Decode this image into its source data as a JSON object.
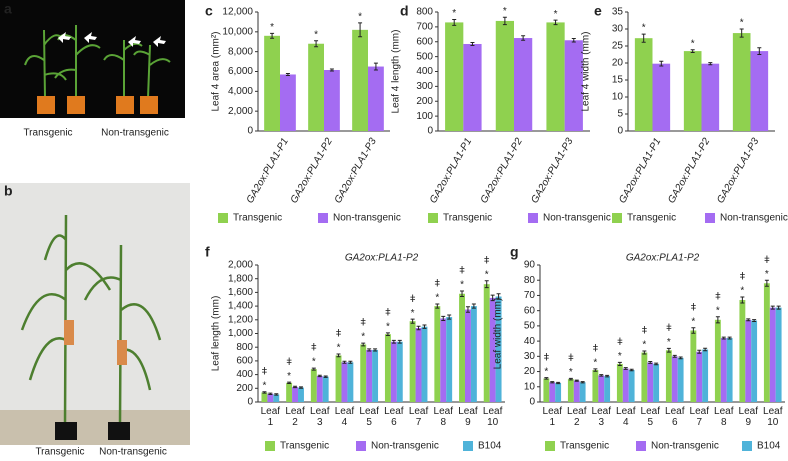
{
  "photos": [
    {
      "panel": "a",
      "captions": [
        "Transgenic",
        "Non-transgenic"
      ]
    },
    {
      "panel": "b",
      "captions": [
        "Transgenic",
        "Non-transgenic"
      ]
    }
  ],
  "chart_data": [
    {
      "type": "bar",
      "panel": "c",
      "y_label": "Leaf 4 area (mm²)",
      "categories": [
        "GA2ox:PLA1-P1",
        "GA2ox:PLA1-P2",
        "GA2ox:PLA1-P3"
      ],
      "series": [
        {
          "name": "Transgenic",
          "color": "#8fd14f",
          "values": [
            9600,
            8800,
            10200
          ],
          "errors": [
            250,
            300,
            700
          ]
        },
        {
          "name": "Non-transgenic",
          "color": "#a46cf2",
          "values": [
            5700,
            6150,
            6500
          ],
          "errors": [
            100,
            100,
            350
          ]
        }
      ],
      "significance": [
        "*",
        "*",
        "*"
      ],
      "ylim": [
        0,
        12000
      ],
      "yticks": [
        0,
        {
          "value": 2000,
          "label": "2,000"
        },
        {
          "value": 4000,
          "label": "4,000"
        },
        {
          "value": 6000,
          "label": "6,000"
        },
        {
          "value": 8000,
          "label": "8,000"
        },
        {
          "value": 10000,
          "label": "10,000"
        },
        {
          "value": 12000,
          "label": "12,000"
        }
      ]
    },
    {
      "type": "bar",
      "panel": "d",
      "y_label": "Leaf 4 length (mm)",
      "categories": [
        "GA2ox:PLA1-P1",
        "GA2ox:PLA1-P2",
        "GA2ox:PLA1-P3"
      ],
      "series": [
        {
          "name": "Transgenic",
          "color": "#8fd14f",
          "values": [
            730,
            740,
            730
          ],
          "errors": [
            20,
            25,
            15
          ]
        },
        {
          "name": "Non-transgenic",
          "color": "#a46cf2",
          "values": [
            585,
            625,
            610
          ],
          "errors": [
            10,
            15,
            12
          ]
        }
      ],
      "significance": [
        "*",
        "*",
        "*"
      ],
      "ylim": [
        0,
        800
      ],
      "yticks": [
        0,
        100,
        200,
        300,
        400,
        500,
        600,
        700,
        800
      ]
    },
    {
      "type": "bar",
      "panel": "e",
      "y_label": "Leaf 4 width (mm)",
      "categories": [
        "GA2ox:PLA1-P1",
        "GA2ox:PLA1-P2",
        "GA2ox:PLA1-P3"
      ],
      "series": [
        {
          "name": "Transgenic",
          "color": "#8fd14f",
          "values": [
            27.3,
            23.5,
            28.8
          ],
          "errors": [
            1.2,
            0.4,
            1.2
          ]
        },
        {
          "name": "Non-transgenic",
          "color": "#a46cf2",
          "values": [
            19.8,
            19.8,
            23.5
          ],
          "errors": [
            0.7,
            0.3,
            1.0
          ]
        }
      ],
      "significance": [
        "*",
        "*",
        "*"
      ],
      "ylim": [
        0,
        35
      ],
      "yticks": [
        0,
        5,
        10,
        15,
        20,
        25,
        30,
        35
      ]
    },
    {
      "type": "bar",
      "panel": "f",
      "title": "GA2ox:PLA1-P2",
      "y_label": "Leaf length (mm)",
      "categories": [
        "Leaf 1",
        "Leaf 2",
        "Leaf 3",
        "Leaf 4",
        "Leaf 5",
        "Leaf 6",
        "Leaf 7",
        "Leaf 8",
        "Leaf 9",
        "Leaf 10"
      ],
      "series": [
        {
          "name": "Transgenic",
          "color": "#8fd14f",
          "values": [
            140,
            280,
            480,
            680,
            840,
            990,
            1180,
            1400,
            1580,
            1720
          ],
          "errors": [
            10,
            10,
            15,
            20,
            20,
            20,
            30,
            30,
            40,
            50
          ]
        },
        {
          "name": "Non-transgenic",
          "color": "#a46cf2",
          "values": [
            120,
            220,
            380,
            580,
            760,
            880,
            1080,
            1220,
            1350,
            1520
          ],
          "errors": [
            10,
            10,
            10,
            15,
            15,
            20,
            25,
            30,
            40,
            40
          ]
        },
        {
          "name": "B104",
          "color": "#4fb3d9",
          "values": [
            110,
            210,
            370,
            580,
            760,
            880,
            1100,
            1240,
            1400,
            1540
          ],
          "errors": [
            10,
            10,
            10,
            15,
            15,
            20,
            25,
            30,
            30,
            40
          ]
        }
      ],
      "significance": [
        "*",
        "*",
        "*",
        "*",
        "*",
        "*",
        "*",
        "*",
        "*",
        "*"
      ],
      "significance2": [
        "ǂ",
        "ǂ",
        "ǂ",
        "ǂ",
        "ǂ",
        "ǂ",
        "ǂ",
        "ǂ",
        "ǂ",
        "ǂ"
      ],
      "ylim": [
        0,
        2000
      ],
      "yticks": [
        0,
        200,
        400,
        600,
        800,
        {
          "value": 1000,
          "label": "1,000"
        },
        {
          "value": 1200,
          "label": "1,200"
        },
        {
          "value": 1400,
          "label": "1,400"
        },
        {
          "value": 1600,
          "label": "1,600"
        },
        {
          "value": 1800,
          "label": "1,800"
        },
        {
          "value": 2000,
          "label": "2,000"
        }
      ]
    },
    {
      "type": "bar",
      "panel": "g",
      "title": "GA2ox:PLA1-P2",
      "y_label": "Leaf width (mm)",
      "categories": [
        "Leaf 1",
        "Leaf 2",
        "Leaf 3",
        "Leaf 4",
        "Leaf 5",
        "Leaf 6",
        "Leaf 7",
        "Leaf 8",
        "Leaf 9",
        "Leaf 10"
      ],
      "series": [
        {
          "name": "Transgenic",
          "color": "#8fd14f",
          "values": [
            15.5,
            15,
            21,
            25,
            32.5,
            34,
            47,
            54,
            67,
            78
          ],
          "errors": [
            0.5,
            0.5,
            0.8,
            1,
            1,
            1.2,
            1.8,
            2,
            2,
            2
          ]
        },
        {
          "name": "Non-transgenic",
          "color": "#a46cf2",
          "values": [
            13,
            14,
            17.5,
            22,
            26,
            30,
            33,
            42,
            54,
            62
          ],
          "errors": [
            0.4,
            0.4,
            0.5,
            0.6,
            0.6,
            0.6,
            1,
            0.6,
            0.6,
            1
          ]
        },
        {
          "name": "B104",
          "color": "#4fb3d9",
          "values": [
            12.5,
            13,
            17,
            21,
            25,
            29,
            34.5,
            42,
            53.5,
            62
          ],
          "errors": [
            0.4,
            0.4,
            0.5,
            0.5,
            0.5,
            0.6,
            0.8,
            0.6,
            0.6,
            1
          ]
        }
      ],
      "significance": [
        "*",
        "*",
        "*",
        "*",
        "*",
        "*",
        "*",
        "*",
        "*",
        "*"
      ],
      "significance2": [
        "ǂ",
        "ǂ",
        "ǂ",
        "ǂ",
        "ǂ",
        "ǂ",
        "ǂ",
        "ǂ",
        "ǂ",
        "ǂ"
      ],
      "ylim": [
        0,
        90
      ],
      "yticks": [
        0,
        10,
        20,
        30,
        40,
        50,
        60,
        70,
        80,
        90
      ]
    }
  ]
}
